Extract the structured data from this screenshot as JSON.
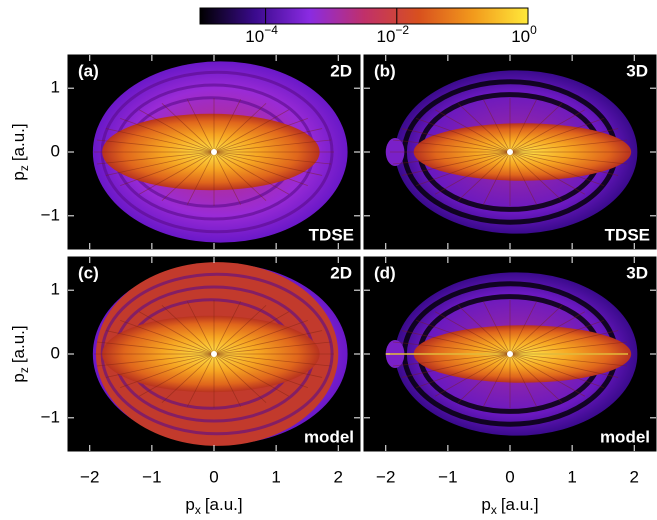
{
  "chart_data": {
    "type": "heatmap",
    "colorbar": {
      "scale": "log",
      "lim": [
        1e-05,
        1
      ],
      "ticks": [
        {
          "value": 0.0001,
          "label": "10",
          "exponent": "−4"
        },
        {
          "value": 0.01,
          "label": "10",
          "exponent": "−2"
        },
        {
          "value": 1,
          "label": "10",
          "exponent": "0"
        }
      ],
      "colors": [
        "#000000",
        "#3a0a8c",
        "#8a2be2",
        "#c0306a",
        "#d8501e",
        "#f29a1c",
        "#ffe93a"
      ]
    },
    "xlabel": {
      "symbol": "p",
      "subscript": "x",
      "unit": "[a.u.]"
    },
    "ylabel": {
      "symbol": "p",
      "subscript": "z",
      "unit": "[a.u.]"
    },
    "xlim": [
      -2.35,
      2.35
    ],
    "ylim": [
      -1.52,
      1.52
    ],
    "xticks": [
      {
        "value": -2,
        "label": "−2"
      },
      {
        "value": -1,
        "label": "−1"
      },
      0,
      1,
      2
    ],
    "yticks": [
      {
        "value": -1,
        "label": "−1"
      },
      0,
      1
    ],
    "panels": [
      {
        "label": "(a)",
        "dimension": "2D",
        "method": "TDSE"
      },
      {
        "label": "(b)",
        "dimension": "3D",
        "method": "TDSE"
      },
      {
        "label": "(c)",
        "dimension": "2D",
        "method": "model"
      },
      {
        "label": "(d)",
        "dimension": "3D",
        "method": "model"
      }
    ]
  }
}
